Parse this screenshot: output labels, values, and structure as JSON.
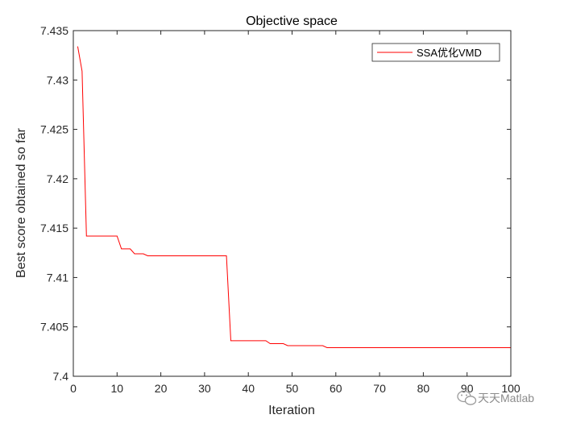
{
  "chart_data": {
    "type": "line",
    "title": "Objective space",
    "xlabel": "Iteration",
    "ylabel": "Best score obtained so far",
    "xlim": [
      0,
      100
    ],
    "ylim": [
      7.4,
      7.435
    ],
    "xticks": [
      0,
      10,
      20,
      30,
      40,
      50,
      60,
      70,
      80,
      90,
      100
    ],
    "yticks": [
      7.4,
      7.405,
      7.41,
      7.415,
      7.42,
      7.425,
      7.43,
      7.435
    ],
    "xtick_labels": [
      "0",
      "10",
      "20",
      "30",
      "40",
      "50",
      "60",
      "70",
      "80",
      "90",
      "100"
    ],
    "ytick_labels": [
      "7.4",
      "7.405",
      "7.41",
      "7.415",
      "7.42",
      "7.425",
      "7.43",
      "7.435"
    ],
    "grid": false,
    "legend_position": "top-right",
    "series": [
      {
        "name": "SSA优化VMD",
        "color": "#ff0000",
        "points": [
          [
            1,
            7.4334
          ],
          [
            2,
            7.4309
          ],
          [
            3,
            7.4142
          ],
          [
            4,
            7.4142
          ],
          [
            5,
            7.4142
          ],
          [
            6,
            7.4142
          ],
          [
            7,
            7.4142
          ],
          [
            8,
            7.4142
          ],
          [
            9,
            7.4142
          ],
          [
            10,
            7.4142
          ],
          [
            11,
            7.4129
          ],
          [
            12,
            7.4129
          ],
          [
            13,
            7.4129
          ],
          [
            14,
            7.4124
          ],
          [
            15,
            7.4124
          ],
          [
            16,
            7.4124
          ],
          [
            17,
            7.4122
          ],
          [
            18,
            7.4122
          ],
          [
            19,
            7.4122
          ],
          [
            20,
            7.4122
          ],
          [
            25,
            7.4122
          ],
          [
            30,
            7.4122
          ],
          [
            35,
            7.4122
          ],
          [
            36,
            7.4036
          ],
          [
            37,
            7.4036
          ],
          [
            40,
            7.4036
          ],
          [
            44,
            7.4036
          ],
          [
            45,
            7.4033
          ],
          [
            46,
            7.4033
          ],
          [
            47,
            7.4033
          ],
          [
            48,
            7.4033
          ],
          [
            49,
            7.4031
          ],
          [
            50,
            7.4031
          ],
          [
            55,
            7.4031
          ],
          [
            57,
            7.4031
          ],
          [
            58,
            7.4029
          ],
          [
            60,
            7.4029
          ],
          [
            70,
            7.4029
          ],
          [
            80,
            7.4029
          ],
          [
            90,
            7.4029
          ],
          [
            100,
            7.4029
          ]
        ]
      }
    ]
  },
  "watermark": {
    "text": "天天Matlab",
    "icon": "wechat-icon"
  }
}
